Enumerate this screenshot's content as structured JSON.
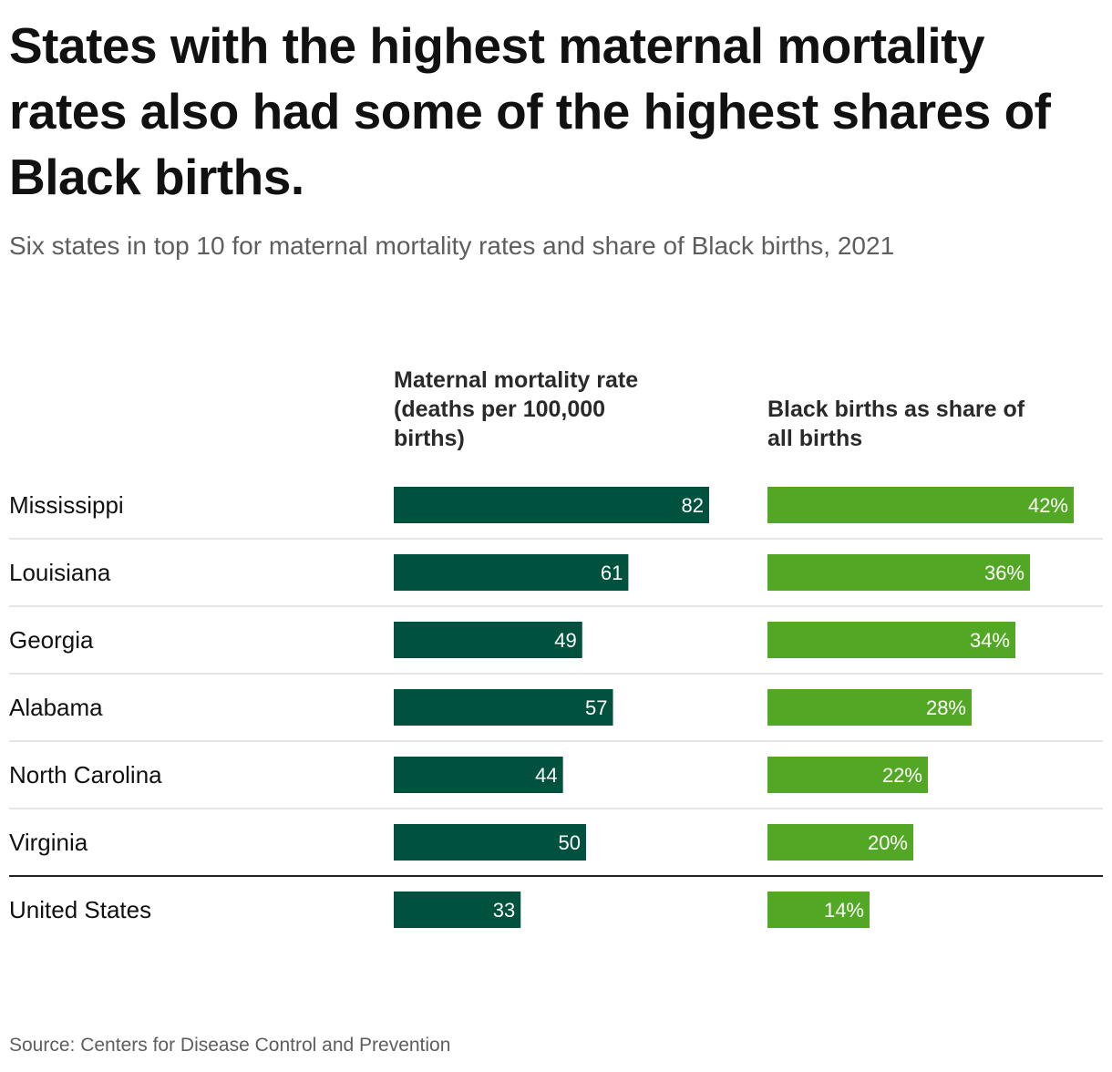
{
  "title": "States with the highest maternal mortality rates also had some of the highest shares of Black births.",
  "subtitle": "Six states in top 10 for maternal mortality rates and share of Black births, 2021",
  "source": "Source: Centers for Disease Control and Prevention",
  "colors": {
    "mortality": "#00513e",
    "births": "#52a824",
    "divider": "#dddddd",
    "total_rule": "#222222"
  },
  "chart_data": {
    "type": "bar",
    "title": "States with the highest maternal mortality rates also had some of the highest shares of Black births.",
    "categories": [
      "Mississippi",
      "Louisiana",
      "Georgia",
      "Alabama",
      "North Carolina",
      "Virginia",
      "United States"
    ],
    "series": [
      {
        "name": "Maternal mortality rate (deaths per 100,000 births)",
        "header_lines": [
          "Maternal mortality rate",
          "(deaths per 100,000",
          "births)"
        ],
        "values": [
          82,
          61,
          49,
          57,
          44,
          50,
          33
        ],
        "labels": [
          "82",
          "61",
          "49",
          "57",
          "44",
          "50",
          "33"
        ],
        "xlim": [
          0,
          82
        ]
      },
      {
        "name": "Black births as share of all births",
        "header_lines": [
          "Black births as share of",
          "all births"
        ],
        "values": [
          42,
          36,
          34,
          28,
          22,
          20,
          14
        ],
        "labels": [
          "42%",
          "36%",
          "34%",
          "28%",
          "22%",
          "20%",
          "14%"
        ],
        "xlim": [
          0,
          42
        ]
      }
    ]
  }
}
